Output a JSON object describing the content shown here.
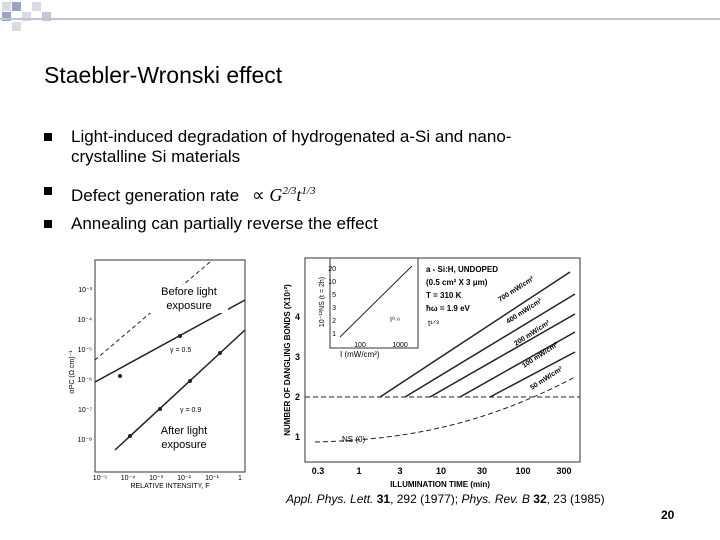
{
  "header": {
    "title": "Staebler-Wronski effect"
  },
  "bullets": [
    {
      "lines": [
        "Light-induced degradation of hydrogenated a-Si and nano-",
        "crystalline Si materials"
      ]
    },
    {
      "lines": [
        "Defect generation rate"
      ],
      "formula": {
        "symbol": "∝",
        "base1": "G",
        "exp1": "2/3",
        "base2": "t",
        "exp2": "1/3"
      }
    },
    {
      "lines": [
        "Annealing can partially reverse the effect"
      ]
    }
  ],
  "figures": {
    "left": {
      "y_label": "σPC (Ω cm)⁻¹",
      "y_ticks": [
        "10⁻³",
        "10⁻⁴",
        "10⁻⁵",
        "10⁻⁶",
        "10⁻⁷",
        "10⁻⁸"
      ],
      "x_ticks": [
        "10⁻⁵",
        "10⁻⁴",
        "10⁻³",
        "10⁻²",
        "10⁻¹",
        "1"
      ],
      "x_label": "RELATIVE INTENSITY, F",
      "labels": [
        "γ = 0.5",
        "γ = 0.9"
      ]
    },
    "right": {
      "y_label": "NUMBER OF DANGLING BONDS (X10¹²)",
      "y_ticks": [
        "1",
        "2",
        "3",
        "4"
      ],
      "x_ticks": [
        "0.3",
        "1",
        "3",
        "10",
        "30",
        "100",
        "300"
      ],
      "x_label": "ILLUMINATION TIME (min)",
      "legend": [
        "a - Si:H, UNDOPED",
        "(0.5 cm² X 3 μm)",
        "T = 310 K",
        "ħω = 1.9 eV"
      ],
      "slope_label": "t¹ᐟ³",
      "line_labels": [
        "700 mW/cm²",
        "400 mW/cm²",
        "200 mW/cm²",
        "100 mW/cm²",
        "50 mW/cm²"
      ],
      "baseline_label": "NS (0)",
      "inset": {
        "y_label": "10⁻¹²NS (t = 2h)",
        "x_label": "I (mW/cm²)",
        "x_ticks": [
          "100",
          "1000"
        ],
        "y_ticks": [
          "1",
          "2",
          "3",
          "5",
          "10",
          "20"
        ],
        "slope": "I⁰·⁶"
      }
    }
  },
  "annotations": {
    "before": [
      "Before light",
      "exposure"
    ],
    "after": [
      "After light",
      "exposure"
    ]
  },
  "citation": [
    {
      "text": "Appl. Phys. Lett.",
      "style": "italic"
    },
    {
      "text": " 31",
      "style": "bold"
    },
    {
      "text": ", 292 (1977); ",
      "style": "normal"
    },
    {
      "text": "Phys. Rev. B",
      "style": "italic"
    },
    {
      "text": " 32",
      "style": "bold"
    },
    {
      "text": ", 23 (1985)",
      "style": "normal"
    }
  ],
  "page_number": "20"
}
